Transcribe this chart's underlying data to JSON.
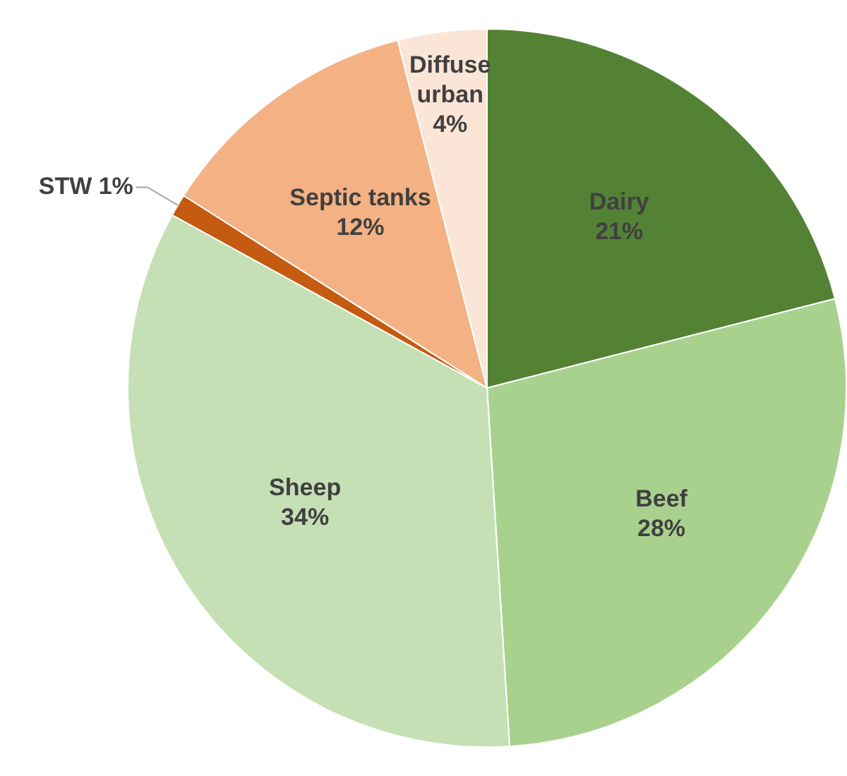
{
  "chart_data": {
    "type": "pie",
    "categories": [
      "Dairy",
      "Beef",
      "Sheep",
      "STW",
      "Septic tanks",
      "Diffuse urban"
    ],
    "values": [
      21,
      28,
      34,
      1,
      12,
      4
    ],
    "value_labels": [
      "21%",
      "28%",
      "34%",
      "1%",
      "12%",
      "4%"
    ],
    "colors": [
      "#548235",
      "#a9d18e",
      "#c5e0b4",
      "#c55a11",
      "#f4b183",
      "#fbe5d6"
    ],
    "legend": false
  }
}
